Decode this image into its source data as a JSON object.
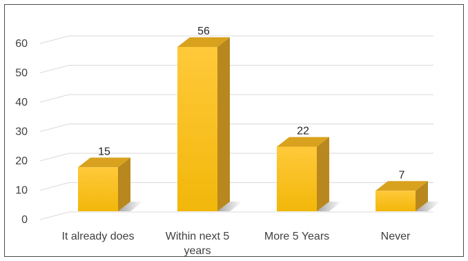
{
  "chart_data": {
    "type": "bar",
    "style": "3d-column",
    "categories": [
      [
        "It already does"
      ],
      [
        "Within next 5",
        "years"
      ],
      [
        "More 5 Years"
      ],
      [
        "Never"
      ]
    ],
    "values": [
      15,
      56,
      22,
      7
    ],
    "data_labels": [
      "15",
      "56",
      "22",
      "7"
    ],
    "title": "",
    "xlabel": "",
    "ylabel": "",
    "ylim": [
      0,
      60
    ],
    "yticks": [
      "0",
      "10",
      "20",
      "30",
      "40",
      "50",
      "60"
    ],
    "grid": true,
    "legend": "none",
    "colors": {
      "bar_front_top": "#FFC93A",
      "bar_front_bottom": "#F2B70A",
      "bar_side": "#B8881F",
      "bar_top": "#D9A21E",
      "grid": "#D9D9D9",
      "text": "#404040"
    }
  }
}
